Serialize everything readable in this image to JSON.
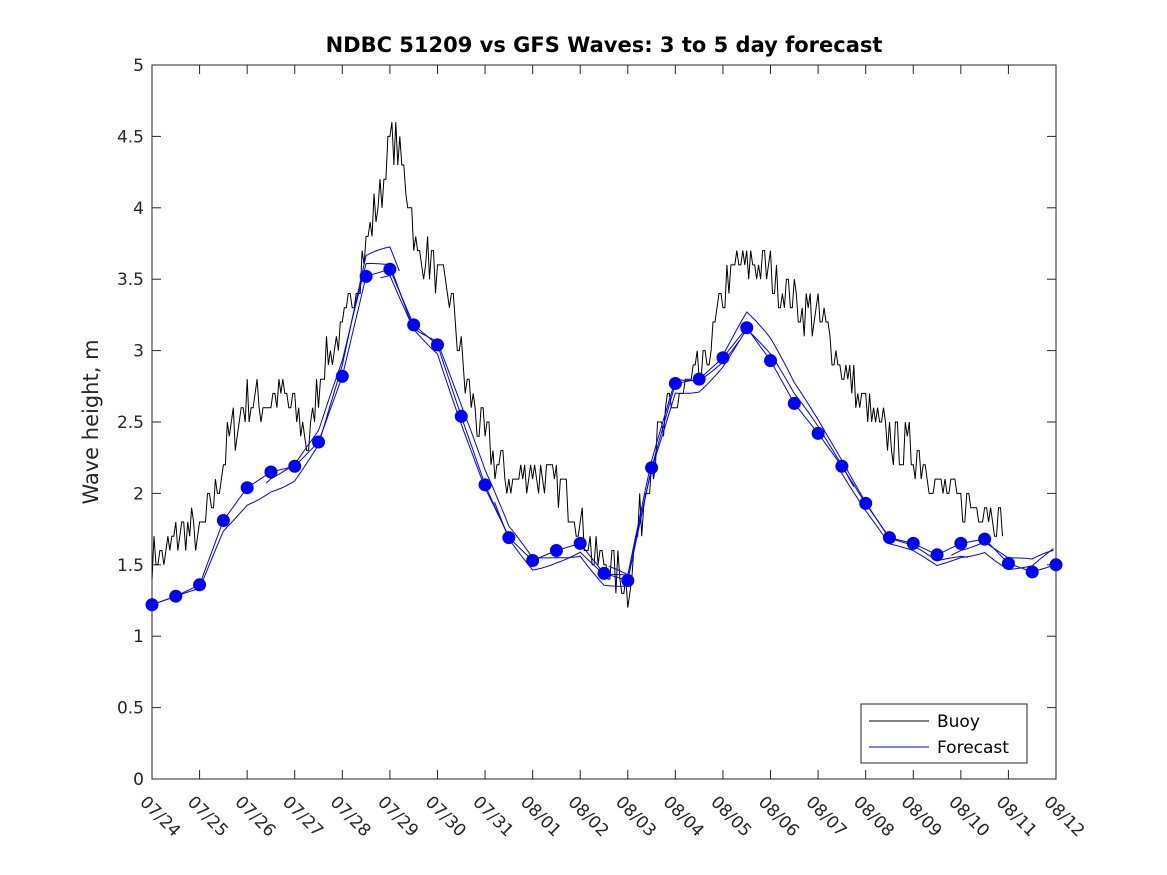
{
  "chart_data": {
    "type": "line",
    "title": "NDBC 51209 vs GFS Waves: 3 to 5 day forecast",
    "xlabel": "",
    "ylabel": "Wave height, m",
    "xlim": [
      "07/24",
      "08/12"
    ],
    "ylim": [
      0,
      5
    ],
    "x_ticks": [
      "07/24",
      "07/25",
      "07/26",
      "07/27",
      "07/28",
      "07/29",
      "07/30",
      "07/31",
      "08/01",
      "08/02",
      "08/03",
      "08/04",
      "08/05",
      "08/06",
      "08/07",
      "08/08",
      "08/09",
      "08/10",
      "08/11",
      "08/12"
    ],
    "y_ticks": [
      "0",
      "0.5",
      "1",
      "1.5",
      "2",
      "2.5",
      "3",
      "3.5",
      "4",
      "4.5",
      "5"
    ],
    "legend": {
      "position": "bottom-right",
      "entries": [
        "Buoy",
        "Forecast"
      ]
    },
    "colors": {
      "buoy": "#000000",
      "forecast": "#0000ff",
      "axis": "#262626"
    },
    "grid": false,
    "series": [
      {
        "name": "Buoy",
        "x_days": [
          0.0,
          0.3,
          0.6,
          1.0,
          1.3,
          1.6,
          2.0,
          2.3,
          2.6,
          3.0,
          3.3,
          3.6,
          4.0,
          4.3,
          4.6,
          4.8,
          5.0,
          5.2,
          5.4,
          5.6,
          5.8,
          6.0,
          6.3,
          6.6,
          7.0,
          7.3,
          7.6,
          8.0,
          8.3,
          8.6,
          9.0,
          9.3,
          9.6,
          10.0,
          10.2,
          10.4,
          10.6,
          10.8,
          11.0,
          11.3,
          11.6,
          12.0,
          12.3,
          12.6,
          13.0,
          13.3,
          13.6,
          14.0,
          14.3,
          14.6,
          15.0,
          15.3,
          15.6,
          16.0,
          16.3,
          16.6,
          17.0,
          17.3,
          17.6,
          17.9
        ],
        "values": [
          1.6,
          1.55,
          1.75,
          1.7,
          2.0,
          2.35,
          2.65,
          2.6,
          2.7,
          2.6,
          2.35,
          2.95,
          3.1,
          3.5,
          3.9,
          4.1,
          4.5,
          4.4,
          4.1,
          3.6,
          3.7,
          3.5,
          3.35,
          2.75,
          2.4,
          2.2,
          2.05,
          2.15,
          2.1,
          2.05,
          1.8,
          1.55,
          1.5,
          1.35,
          1.7,
          2.1,
          2.3,
          2.5,
          2.65,
          2.75,
          2.85,
          3.4,
          3.6,
          3.6,
          3.55,
          3.4,
          3.3,
          3.25,
          3.05,
          2.8,
          2.6,
          2.45,
          2.35,
          2.3,
          2.2,
          2.0,
          1.95,
          1.9,
          1.9,
          1.8
        ],
        "color": "#000000"
      },
      {
        "name": "Forecast",
        "x_days": [
          0,
          0.5,
          1.0,
          1.5,
          2.0,
          2.5,
          3.0,
          3.5,
          4.0,
          4.5,
          5.0,
          5.5,
          6.0,
          6.5,
          7.0,
          7.5,
          8.0,
          8.5,
          9.0,
          9.5,
          10.0,
          10.5,
          11.0,
          11.5,
          12.0,
          12.5,
          13.0,
          13.5,
          14.0,
          14.5,
          15.0,
          15.5,
          16.0,
          16.5,
          17.0,
          17.5,
          18.0,
          18.5,
          19.0
        ],
        "values": [
          1.22,
          1.28,
          1.36,
          1.81,
          2.04,
          2.15,
          2.19,
          2.36,
          2.82,
          3.52,
          3.57,
          3.18,
          3.04,
          2.54,
          2.06,
          1.69,
          1.53,
          1.6,
          1.65,
          1.44,
          1.39,
          2.18,
          2.77,
          2.8,
          2.95,
          3.16,
          2.93,
          2.63,
          2.42,
          2.19,
          1.93,
          1.69,
          1.65,
          1.57,
          1.65,
          1.68,
          1.51,
          1.45,
          1.5
        ],
        "color": "#0000ff"
      }
    ]
  }
}
